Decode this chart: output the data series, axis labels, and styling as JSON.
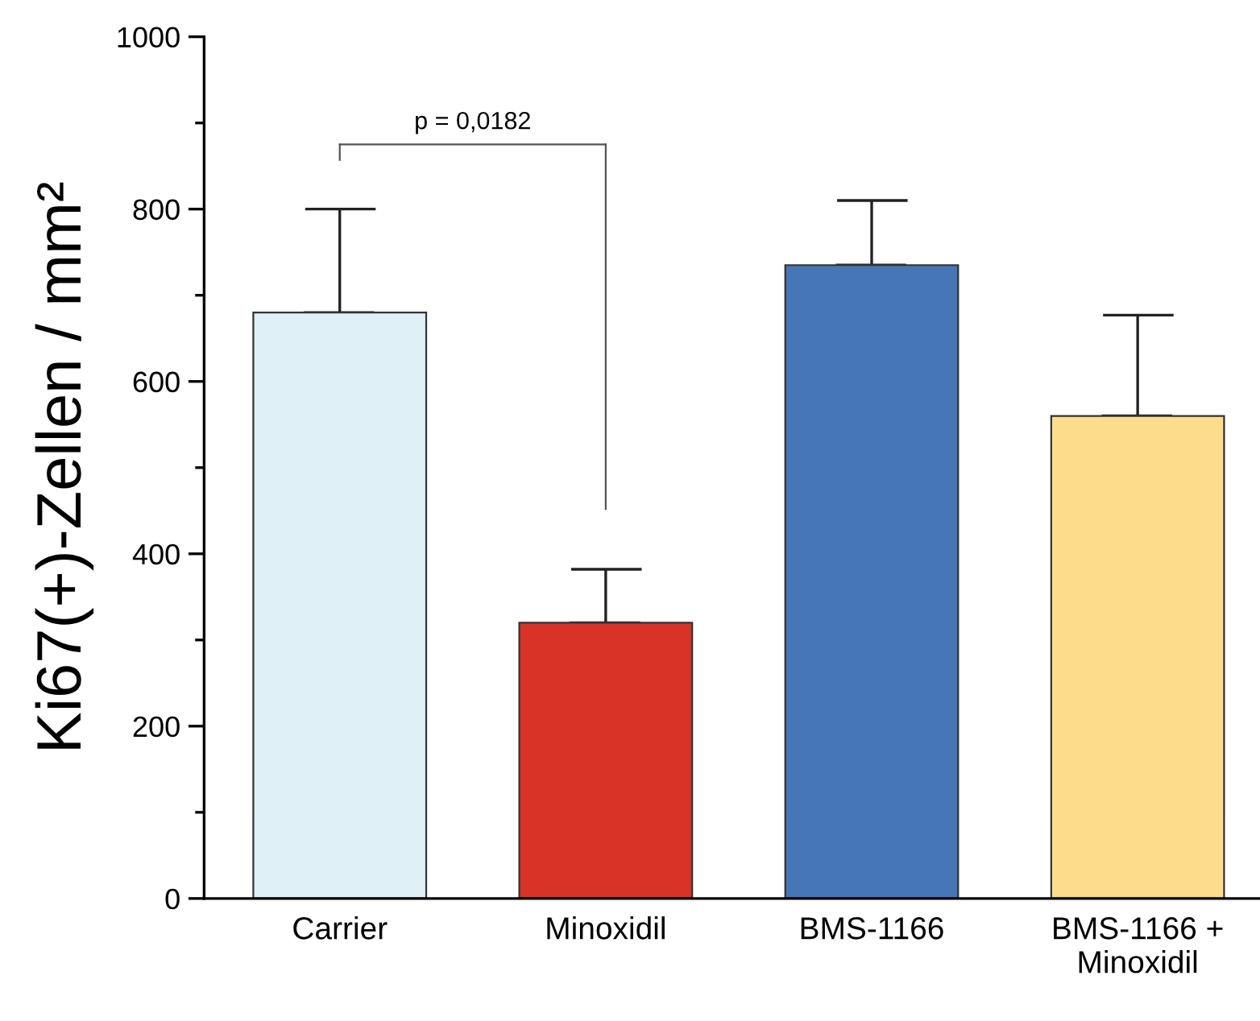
{
  "chart_data": {
    "type": "bar",
    "ylabel": "Ki67(+)-Zellen / mm²",
    "categories": [
      "Carrier",
      "Minoxidil",
      "BMS-1166",
      "BMS-1166 +\nMinoxidil"
    ],
    "values": [
      680,
      320,
      735,
      560
    ],
    "errors": [
      [
        680,
        800
      ],
      [
        320,
        382
      ],
      [
        735,
        810
      ],
      [
        560,
        677
      ]
    ],
    "colors": [
      "#dff0f7",
      "#d93327",
      "#4676b6",
      "#fcdd8c"
    ],
    "ylim": [
      0,
      1000
    ],
    "yticks": [
      0,
      200,
      400,
      600,
      800,
      1000
    ],
    "grid": false,
    "legend": false,
    "annotations": [
      "p = 0,0182"
    ]
  }
}
